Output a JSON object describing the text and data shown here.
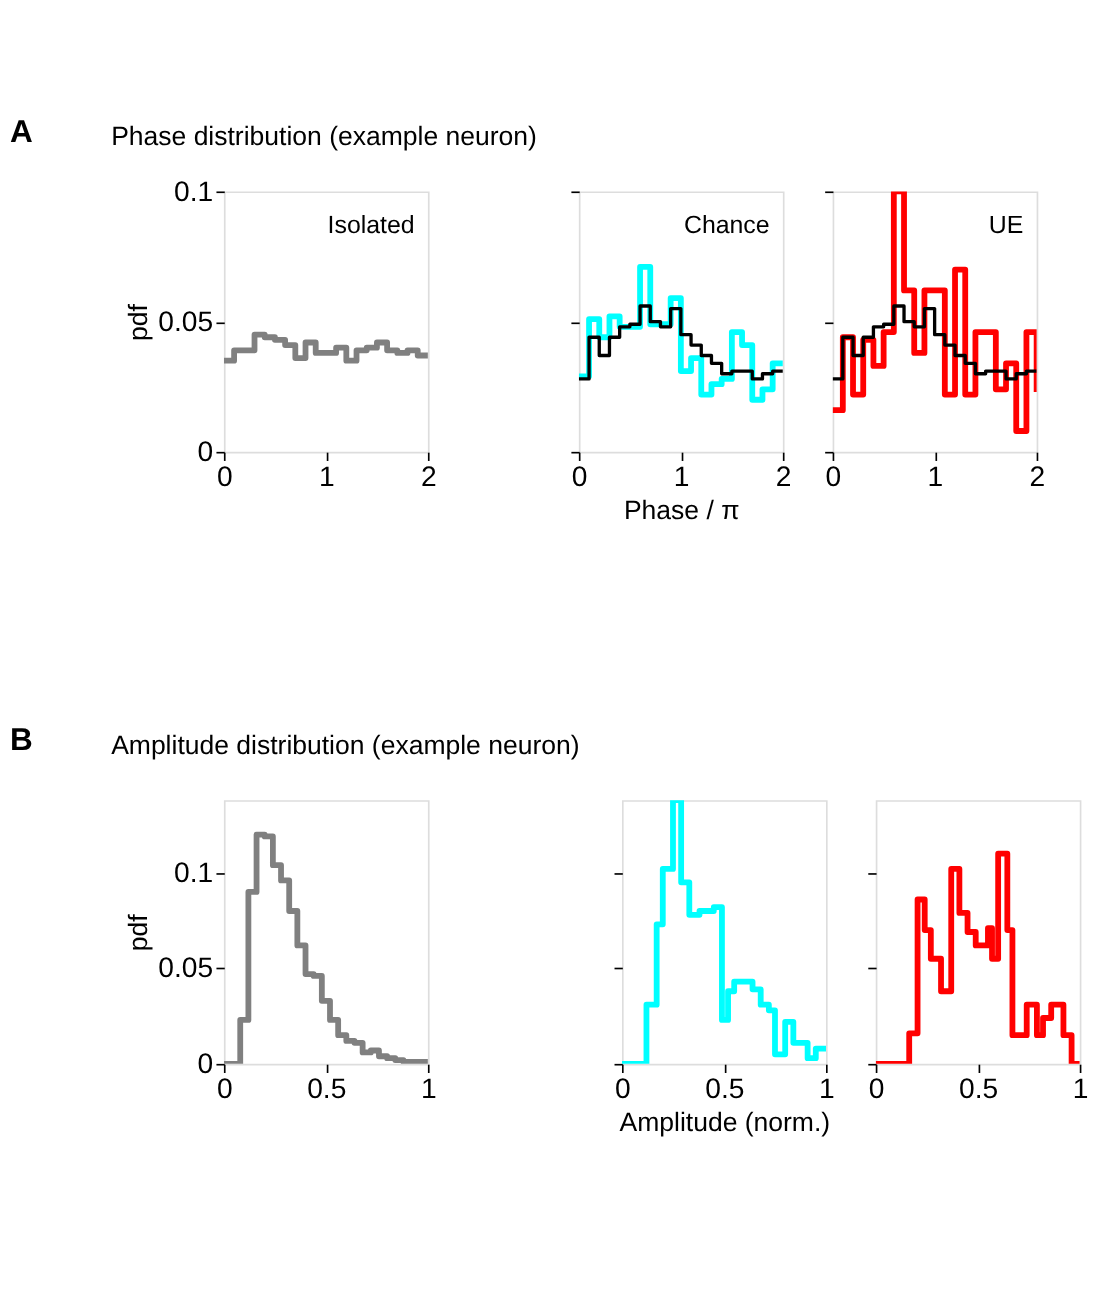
{
  "chart_data": [
    {
      "type": "step",
      "title": "Phase distribution (example neuron)",
      "ylabel": "pdf",
      "annotations": [
        "A",
        "Isolated"
      ],
      "xlim": [
        0,
        2
      ],
      "ylim": [
        0,
        0.1
      ],
      "xticks": [
        0,
        1,
        2
      ],
      "yticks": [
        0,
        0.05,
        0.1
      ],
      "grid": false,
      "series": [
        {
          "color": "#808080",
          "x": [
            0,
            0.1,
            0.2,
            0.3,
            0.4,
            0.5,
            0.6,
            0.7,
            0.8,
            0.9,
            1.0,
            1.1,
            1.2,
            1.3,
            1.4,
            1.5,
            1.6,
            1.7,
            1.8,
            1.9,
            2.0
          ],
          "values": [
            0.035,
            0.039,
            0.039,
            0.045,
            0.044,
            0.043,
            0.041,
            0.036,
            0.042,
            0.038,
            0.038,
            0.04,
            0.035,
            0.039,
            0.04,
            0.042,
            0.039,
            0.038,
            0.039,
            0.037,
            0.037
          ]
        }
      ]
    },
    {
      "type": "step",
      "xlabel": "Phase / π",
      "annotations": [
        "Chance"
      ],
      "xlim": [
        0,
        2
      ],
      "ylim": [
        0,
        0.1
      ],
      "xticks": [
        0,
        1,
        2
      ],
      "yticks": [
        0,
        0.05,
        0.1
      ],
      "tick_labels": "x",
      "grid": false,
      "series": [
        {
          "color": "#00ffff",
          "x": [
            0,
            0.1,
            0.2,
            0.3,
            0.4,
            0.5,
            0.6,
            0.7,
            0.8,
            0.9,
            1.0,
            1.1,
            1.2,
            1.3,
            1.4,
            1.5,
            1.6,
            1.7,
            1.8,
            1.9,
            2.0
          ],
          "values": [
            0.029,
            0.051,
            0.044,
            0.052,
            0.048,
            0.048,
            0.071,
            0.049,
            0.049,
            0.059,
            0.031,
            0.036,
            0.022,
            0.026,
            0.028,
            0.046,
            0.041,
            0.02,
            0.024,
            0.034,
            0.034
          ]
        },
        {
          "color": "#000000",
          "x": [
            0,
            0.1,
            0.2,
            0.3,
            0.4,
            0.5,
            0.6,
            0.7,
            0.8,
            0.9,
            1.0,
            1.1,
            1.2,
            1.3,
            1.4,
            1.5,
            1.6,
            1.7,
            1.8,
            1.9,
            2.0
          ],
          "values": [
            0.028,
            0.044,
            0.037,
            0.044,
            0.048,
            0.049,
            0.056,
            0.05,
            0.048,
            0.055,
            0.045,
            0.041,
            0.037,
            0.034,
            0.03,
            0.031,
            0.031,
            0.028,
            0.03,
            0.031,
            0.031
          ]
        }
      ]
    },
    {
      "type": "step",
      "annotations": [
        "UE"
      ],
      "xlim": [
        0,
        2
      ],
      "ylim": [
        0,
        0.1
      ],
      "xticks": [
        0,
        1,
        2
      ],
      "yticks": [
        0,
        0.05,
        0.1
      ],
      "tick_labels": "x",
      "grid": false,
      "series": [
        {
          "color": "#ff0000",
          "x": [
            0,
            0.1,
            0.2,
            0.3,
            0.4,
            0.5,
            0.6,
            0.7,
            0.8,
            0.9,
            1.0,
            1.1,
            1.2,
            1.3,
            1.4,
            1.5,
            1.6,
            1.7,
            1.8,
            1.9,
            2.0
          ],
          "values": [
            0.016,
            0.044,
            0.022,
            0.043,
            0.033,
            0.046,
            0.1,
            0.062,
            0.038,
            0.062,
            0.062,
            0.022,
            0.07,
            0.022,
            0.046,
            0.046,
            0.024,
            0.034,
            0.008,
            0.046,
            0.023
          ]
        },
        {
          "color": "#000000",
          "x": [
            0,
            0.1,
            0.2,
            0.3,
            0.4,
            0.5,
            0.6,
            0.7,
            0.8,
            0.9,
            1.0,
            1.1,
            1.2,
            1.3,
            1.4,
            1.5,
            1.6,
            1.7,
            1.8,
            1.9,
            2.0
          ],
          "values": [
            0.028,
            0.044,
            0.037,
            0.044,
            0.048,
            0.049,
            0.056,
            0.05,
            0.048,
            0.055,
            0.045,
            0.041,
            0.037,
            0.034,
            0.03,
            0.031,
            0.031,
            0.028,
            0.03,
            0.031,
            0.031
          ]
        }
      ]
    },
    {
      "type": "step",
      "title": "Amplitude distribution (example neuron)",
      "ylabel": "pdf",
      "annotations": [
        "B"
      ],
      "xlim": [
        0,
        1
      ],
      "ylim": [
        0,
        0.138
      ],
      "xticks": [
        0,
        0.5,
        1
      ],
      "yticks": [
        0,
        0.05,
        0.1
      ],
      "grid": false,
      "series": [
        {
          "color": "#808080",
          "x": [
            0,
            0.04,
            0.08,
            0.12,
            0.16,
            0.2,
            0.24,
            0.28,
            0.32,
            0.36,
            0.4,
            0.44,
            0.48,
            0.52,
            0.56,
            0.6,
            0.64,
            0.68,
            0.72,
            0.76,
            0.8,
            0.84,
            0.88,
            0.92,
            0.96,
            1.0
          ],
          "values": [
            0,
            0,
            0.023,
            0.09,
            0.12,
            0.119,
            0.104,
            0.096,
            0.08,
            0.062,
            0.047,
            0.046,
            0.033,
            0.023,
            0.015,
            0.012,
            0.011,
            0.006,
            0.007,
            0.004,
            0.003,
            0.002,
            0.001,
            0.001,
            0.001,
            0.001
          ]
        }
      ]
    },
    {
      "type": "step",
      "xlabel": "Amplitude (norm.)",
      "xlim": [
        0,
        1
      ],
      "ylim": [
        0,
        0.138
      ],
      "xticks": [
        0,
        0.5,
        1
      ],
      "yticks": [
        0,
        0.05,
        0.1
      ],
      "tick_labels": "x",
      "grid": false,
      "series": [
        {
          "color": "#00ffff",
          "x": [
            0,
            0.12,
            0.17,
            0.2,
            0.25,
            0.29,
            0.33,
            0.38,
            0.45,
            0.49,
            0.52,
            0.55,
            0.64,
            0.68,
            0.72,
            0.75,
            0.8,
            0.84,
            0.91,
            0.95,
            1.0
          ],
          "values": [
            0,
            0.031,
            0.073,
            0.102,
            0.138,
            0.095,
            0.078,
            0.08,
            0.082,
            0.023,
            0.038,
            0.043,
            0.039,
            0.031,
            0.028,
            0.005,
            0.022,
            0.011,
            0.003,
            0.008,
            0.008
          ]
        }
      ]
    },
    {
      "type": "step",
      "xlim": [
        0,
        1
      ],
      "ylim": [
        0,
        0.138
      ],
      "xticks": [
        0,
        0.5,
        1
      ],
      "yticks": [
        0,
        0.05,
        0.1
      ],
      "tick_labels": "x",
      "grid": false,
      "series": [
        {
          "color": "#ff0000",
          "x": [
            0,
            0.164,
            0.205,
            0.24,
            0.27,
            0.32,
            0.37,
            0.41,
            0.45,
            0.49,
            0.55,
            0.57,
            0.6,
            0.645,
            0.67,
            0.74,
            0.79,
            0.82,
            0.86,
            0.92,
            0.96,
            1.0
          ],
          "values": [
            0,
            0.016,
            0.086,
            0.07,
            0.055,
            0.038,
            0.102,
            0.079,
            0.069,
            0.062,
            0.071,
            0.055,
            0.11,
            0.07,
            0.015,
            0.031,
            0.015,
            0.024,
            0.031,
            0.015,
            0,
            0
          ]
        }
      ]
    }
  ]
}
